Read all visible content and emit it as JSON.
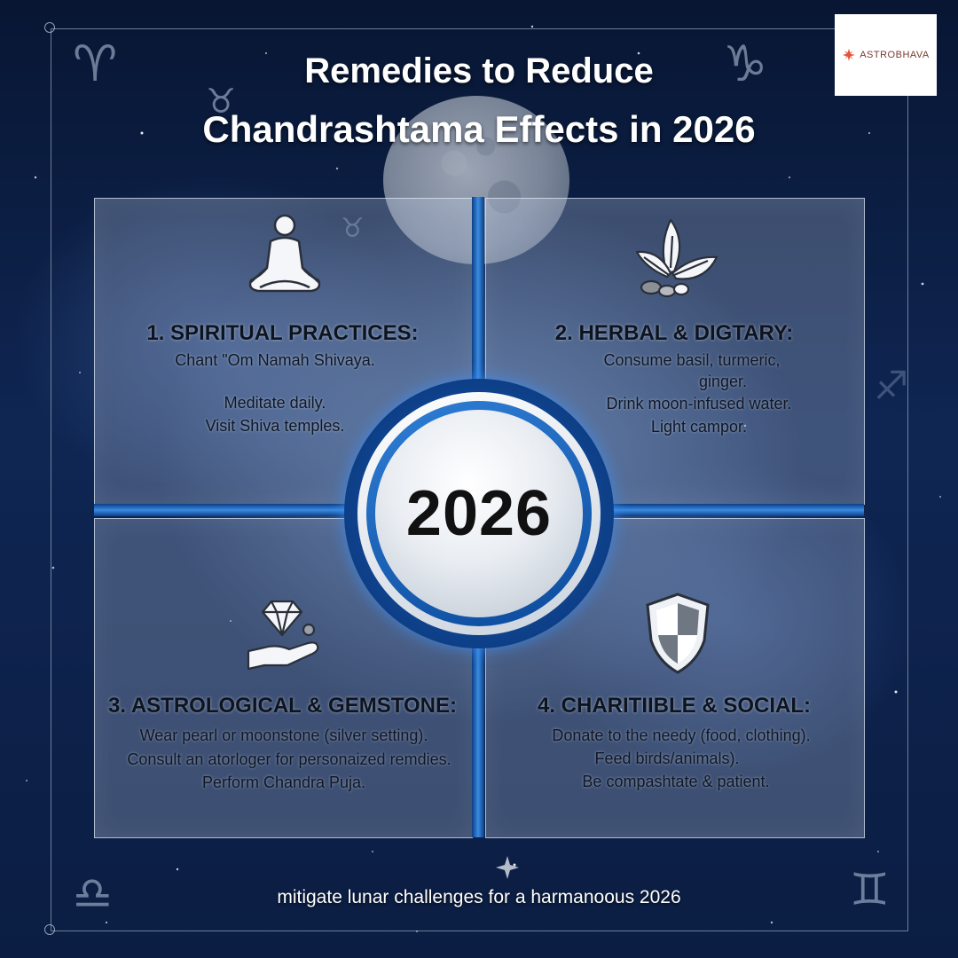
{
  "title": {
    "line1": "Remedies to Reduce",
    "line2": "Chandrashtama Effects in 2026"
  },
  "logo": {
    "text": "ASTROBHAVA",
    "icon": "lotus-icon"
  },
  "center": {
    "year": "2026"
  },
  "panels": [
    {
      "icon": "meditation-icon",
      "heading": "1. SPIRITUAL PRACTICES:",
      "lines": [
        "Chant \"Om Namah Shivaya.",
        "Meditate daily.",
        "Visit Shiva temples."
      ]
    },
    {
      "icon": "herbs-icon",
      "heading": "2. HERBAL & DIGTARY:",
      "lines": [
        "Consume basil, turmeric,",
        "ginger.",
        "Drink moon-infused water.",
        "Light campor."
      ]
    },
    {
      "icon": "gemstone-hand-icon",
      "heading": "3. ASTROLOGICAL & GEMSTONE:",
      "lines": [
        "Wear pearl or moonstone (silver setting).",
        "Consult an atorloger for personaized remdies.",
        "Perform Chandra Puja."
      ]
    },
    {
      "icon": "shield-icon",
      "heading": "4. CHARITIIBLE & SOCIAL:",
      "lines": [
        "Donate to the needy (food, clothing).",
        "Feed birds/animals).",
        "Be compashtate & patient."
      ]
    }
  ],
  "footer": {
    "tagline": "mitigate lunar challenges for a harmanoous 2026"
  },
  "decorations": {
    "zodiac_glyphs": [
      "aries-icon",
      "taurus-icon",
      "capricorn-icon",
      "libra-icon",
      "gemini-icon",
      "sagittarius-icon",
      "taurus-small-icon"
    ]
  },
  "colors": {
    "background": "#0f2653",
    "accent_blue": "#1a5fb8",
    "logo_orange": "#e2553a"
  }
}
